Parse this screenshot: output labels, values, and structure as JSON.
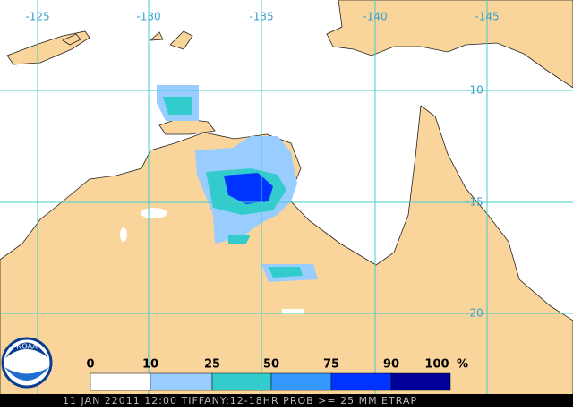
{
  "map": {
    "longitude_labels": [
      "-125",
      "-130",
      "-135",
      "-140",
      "-145"
    ],
    "latitude_labels": [
      "-10",
      "-15",
      "-20"
    ],
    "legend": {
      "ticks": [
        "0",
        "10",
        "25",
        "50",
        "75",
        "90",
        "100"
      ],
      "unit": "%",
      "colors": [
        "#ffffff",
        "#99ccff",
        "#33cccc",
        "#3399ff",
        "#0033ff",
        "#000099"
      ]
    },
    "logo": "NOAA",
    "footer": "11 JAN 22011 12:00 TIFFANY:12-18HR PROB >= 25 MM ETRAP"
  }
}
